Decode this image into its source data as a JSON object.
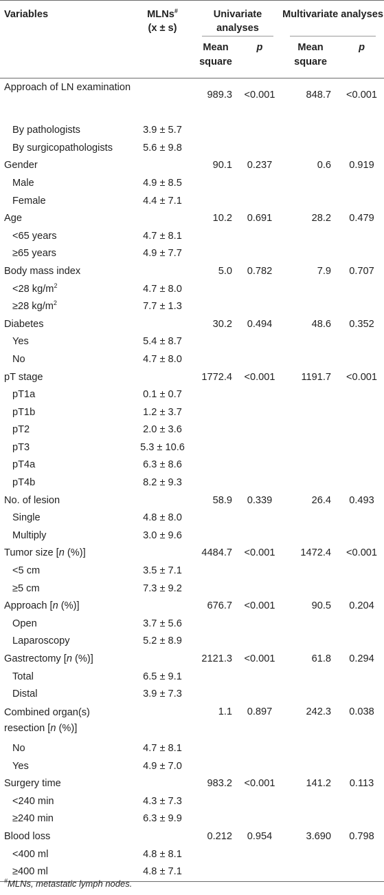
{
  "header": {
    "variables": "Variables",
    "mlns_line1": "MLNs",
    "mlns_sup": "#",
    "mlns_line2": "(x ± s)",
    "univariate": "Univariate analyses",
    "multivariate": "Multivariate analyses",
    "mean_square": "Mean square",
    "p": "p"
  },
  "rows": [
    {
      "kind": "cat",
      "label": "Approach of LN examination",
      "uni_ms": "989.3",
      "uni_p": "<0.001",
      "multi_ms": "848.7",
      "multi_p": "<0.001"
    },
    {
      "kind": "sub",
      "label": "By pathologists",
      "mln": "3.9 ± 5.7"
    },
    {
      "kind": "sub",
      "label": "By surgicopathologists",
      "mln": "5.6 ± 9.8"
    },
    {
      "kind": "cat",
      "label": "Gender",
      "uni_ms": "90.1",
      "uni_p": "0.237",
      "multi_ms": "0.6",
      "multi_p": "0.919"
    },
    {
      "kind": "sub",
      "label": "Male",
      "mln": "4.9 ± 8.5"
    },
    {
      "kind": "sub",
      "label": "Female",
      "mln": "4.4 ± 7.1"
    },
    {
      "kind": "cat",
      "label": "Age",
      "uni_ms": "10.2",
      "uni_p": "0.691",
      "multi_ms": "28.2",
      "multi_p": "0.479"
    },
    {
      "kind": "sub",
      "label": "<65 years",
      "mln": "4.7 ± 8.1"
    },
    {
      "kind": "sub",
      "label": "≥65 years",
      "mln": "4.9 ± 7.7"
    },
    {
      "kind": "cat",
      "label": "Body mass index",
      "uni_ms": "5.0",
      "uni_p": "0.782",
      "multi_ms": "7.9",
      "multi_p": "0.707"
    },
    {
      "kind": "sub",
      "label": "<28 kg/m",
      "label_sup": "2",
      "mln": "4.7 ± 8.0"
    },
    {
      "kind": "sub",
      "label": "≥28 kg/m",
      "label_sup": "2",
      "mln": "7.7 ± 1.3"
    },
    {
      "kind": "cat",
      "label": "Diabetes",
      "uni_ms": "30.2",
      "uni_p": "0.494",
      "multi_ms": "48.6",
      "multi_p": "0.352"
    },
    {
      "kind": "sub",
      "label": "Yes",
      "mln": "5.4 ± 8.7"
    },
    {
      "kind": "sub",
      "label": "No",
      "mln": "4.7 ± 8.0"
    },
    {
      "kind": "cat",
      "label": "pT stage",
      "uni_ms": "1772.4",
      "uni_p": "<0.001",
      "multi_ms": "1191.7",
      "multi_p": "<0.001"
    },
    {
      "kind": "sub",
      "label": "pT1a",
      "mln": "0.1 ± 0.7"
    },
    {
      "kind": "sub",
      "label": "pT1b",
      "mln": "1.2 ± 3.7"
    },
    {
      "kind": "sub",
      "label": "pT2",
      "mln": "2.0 ± 3.6"
    },
    {
      "kind": "sub",
      "label": "pT3",
      "mln": "5.3 ± 10.6"
    },
    {
      "kind": "sub",
      "label": "pT4a",
      "mln": "6.3 ± 8.6"
    },
    {
      "kind": "sub",
      "label": "pT4b",
      "mln": "8.2 ± 9.3"
    },
    {
      "kind": "cat",
      "label": "No. of lesion",
      "uni_ms": "58.9",
      "uni_p": "0.339",
      "multi_ms": "26.4",
      "multi_p": "0.493"
    },
    {
      "kind": "sub",
      "label": "Single",
      "mln": "4.8 ± 8.0"
    },
    {
      "kind": "sub",
      "label": "Multiply",
      "mln": "3.0 ± 9.6"
    },
    {
      "kind": "cat",
      "label": "Tumor size [",
      "label_italic": "n",
      "label_tail": " (%)]",
      "uni_ms": "4484.7",
      "uni_p": "<0.001",
      "multi_ms": "1472.4",
      "multi_p": "<0.001"
    },
    {
      "kind": "sub",
      "label": "<5 cm",
      "mln": "3.5 ± 7.1"
    },
    {
      "kind": "sub",
      "label": "≥5 cm",
      "mln": "7.3 ± 9.2"
    },
    {
      "kind": "cat",
      "label": "Approach [",
      "label_italic": "n",
      "label_tail": " (%)]",
      "uni_ms": "676.7",
      "uni_p": "<0.001",
      "multi_ms": "90.5",
      "multi_p": "0.204"
    },
    {
      "kind": "sub",
      "label": "Open",
      "mln": "3.7 ± 5.6"
    },
    {
      "kind": "sub",
      "label": "Laparoscopy",
      "mln": "5.2 ± 8.9"
    },
    {
      "kind": "cat",
      "label": "Gastrectomy [",
      "label_italic": "n",
      "label_tail": " (%)]",
      "uni_ms": "2121.3",
      "uni_p": "<0.001",
      "multi_ms": "61.8",
      "multi_p": "0.294"
    },
    {
      "kind": "sub",
      "label": "Total",
      "mln": "6.5 ± 9.1"
    },
    {
      "kind": "sub",
      "label": "Distal",
      "mln": "3.9 ± 7.3"
    },
    {
      "kind": "cat",
      "label": "Combined organ(s) resection [",
      "label_italic": "n",
      "label_tail": " (%)]",
      "uni_ms": "1.1",
      "uni_p": "0.897",
      "multi_ms": "242.3",
      "multi_p": "0.038"
    },
    {
      "kind": "sub",
      "label": "No",
      "mln": "4.7 ± 8.1"
    },
    {
      "kind": "sub",
      "label": "Yes",
      "mln": "4.9 ± 7.0"
    },
    {
      "kind": "cat",
      "label": "Surgery time",
      "uni_ms": "983.2",
      "uni_p": "<0.001",
      "multi_ms": "141.2",
      "multi_p": "0.113"
    },
    {
      "kind": "sub",
      "label": "<240 min",
      "mln": "4.3 ± 7.3"
    },
    {
      "kind": "sub",
      "label": "≥240 min",
      "mln": "6.3 ± 9.9"
    },
    {
      "kind": "cat",
      "label": "Blood loss",
      "uni_ms": "0.212",
      "uni_p": "0.954",
      "multi_ms": "3.690",
      "multi_p": "0.798"
    },
    {
      "kind": "sub",
      "label": "<400 ml",
      "mln": "4.8 ± 8.1"
    },
    {
      "kind": "sub",
      "label": "≥400 ml",
      "mln": "4.8 ± 7.1"
    }
  ],
  "footnote": {
    "sup": "#",
    "text": "MLNs, metastatic lymph nodes."
  }
}
